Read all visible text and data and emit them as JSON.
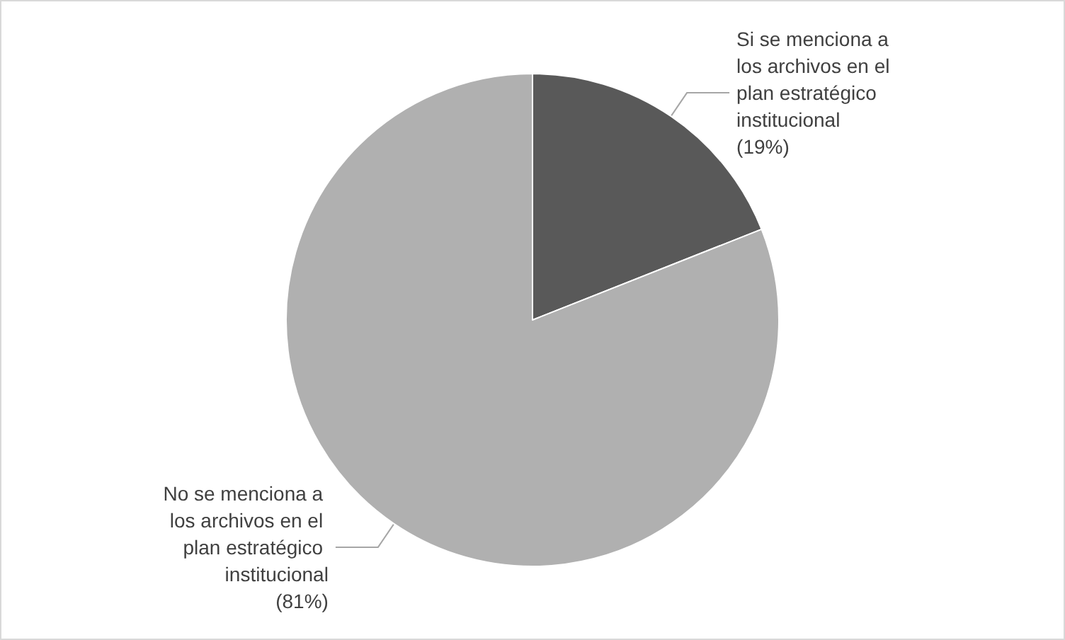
{
  "chart_data": {
    "type": "pie",
    "categories": [
      "Si se menciona a los archivos en el plan estratégico institucional",
      "No se menciona a los archivos en el plan estratégico institucional"
    ],
    "values": [
      19,
      81
    ],
    "value_labels": [
      "(19%)",
      "(81%)"
    ],
    "colors": [
      "#595959",
      "#b0b0b0"
    ],
    "legend": false
  }
}
